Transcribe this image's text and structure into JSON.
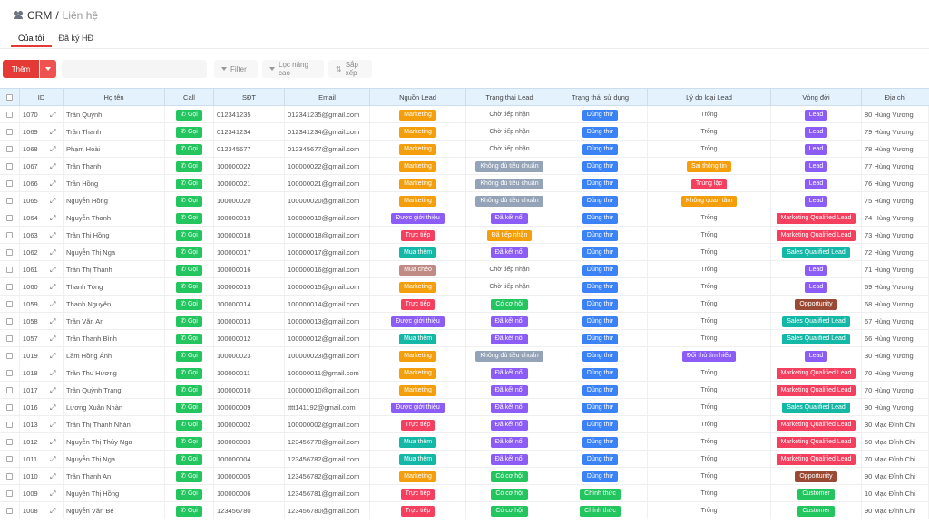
{
  "header": {
    "icon": "users-icon",
    "title": "CRM",
    "separator": "/",
    "subtitle": "Liên hệ"
  },
  "tabs": [
    {
      "label": "Của tôi",
      "active": true
    },
    {
      "label": "Đã ký HĐ",
      "active": false
    }
  ],
  "toolbar": {
    "add_label": "Thêm",
    "search_placeholder": "",
    "filter_label": "Filter",
    "advanced_filter_label": "Lọc nâng cao",
    "sort_label": "Sắp xếp",
    "accent": "#e53935"
  },
  "columns": [
    "ID",
    "Họ tên",
    "Call",
    "SĐT",
    "Email",
    "Nguồn Lead",
    "Trạng thái Lead",
    "Trạng thái sử dụng",
    "Lý do loại Lead",
    "Vòng đời",
    "Địa chỉ"
  ],
  "call_label": "Gọi",
  "colors": {
    "Marketing": "#f59e0b",
    "Được giới thiệu": "#8b5cf6",
    "Trực tiếp": "#f43f5e",
    "Mua thêm": "#14b8a6",
    "Mua chéo": "#c08b84",
    "Chờ tiếp nhận": "",
    "Không đủ tiêu chuẩn": "#94a3b8",
    "Đã kết nối": "#8b5cf6",
    "Đã tiếp nhận": "#f59e0b",
    "Có cơ hội": "#22c55e",
    "Dùng thử": "#3b82f6",
    "Chính thức": "#22c55e",
    "Trống": "",
    "Sai thông tin": "#f59e0b",
    "Trùng lặp": "#f43f5e",
    "Không quan tâm": "#f59e0b",
    "Đối thủ tìm hiểu": "#8b5cf6",
    "Lead": "#8b5cf6",
    "Marketing Qualified Lead": "#f43f5e",
    "Sales Qualified Lead": "#14b8a6",
    "Opportunity": "#9a4a34",
    "Customer": "#22c55e"
  },
  "rows": [
    {
      "id": "1070",
      "name": "Trần Quỳnh",
      "phone": "012341235",
      "email": "012341235@gmail.com",
      "source": "Marketing",
      "lead_status": "Chờ tiếp nhận",
      "usage": "Dùng thử",
      "reason": "Trống",
      "lifecycle": "Lead",
      "address": "80 Hùng Vương"
    },
    {
      "id": "1069",
      "name": "Trần Thanh",
      "phone": "012341234",
      "email": "012341234@gmail.com",
      "source": "Marketing",
      "lead_status": "Chờ tiếp nhận",
      "usage": "Dùng thử",
      "reason": "Trống",
      "lifecycle": "Lead",
      "address": "79 Hùng Vương"
    },
    {
      "id": "1068",
      "name": "Phạm Hoài",
      "phone": "012345677",
      "email": "012345677@gmail.com",
      "source": "Marketing",
      "lead_status": "Chờ tiếp nhận",
      "usage": "Dùng thử",
      "reason": "Trống",
      "lifecycle": "Lead",
      "address": "78 Hùng Vương"
    },
    {
      "id": "1067",
      "name": "Trần Thanh",
      "phone": "100000022",
      "email": "100000022@gmail.com",
      "source": "Marketing",
      "lead_status": "Không đủ tiêu chuẩn",
      "usage": "Dùng thử",
      "reason": "Sai thông tin",
      "lifecycle": "Lead",
      "address": "77 Hùng Vương"
    },
    {
      "id": "1066",
      "name": "Trần Hồng",
      "phone": "100000021",
      "email": "100000021@gmail.com",
      "source": "Marketing",
      "lead_status": "Không đủ tiêu chuẩn",
      "usage": "Dùng thử",
      "reason": "Trùng lặp",
      "lifecycle": "Lead",
      "address": "76 Hùng Vương"
    },
    {
      "id": "1065",
      "name": "Nguyễn Hồng",
      "phone": "100000020",
      "email": "100000020@gmail.com",
      "source": "Marketing",
      "lead_status": "Không đủ tiêu chuẩn",
      "usage": "Dùng thử",
      "reason": "Không quan tâm",
      "lifecycle": "Lead",
      "address": "75 Hùng Vương"
    },
    {
      "id": "1064",
      "name": "Nguyễn Thanh",
      "phone": "100000019",
      "email": "100000019@gmail.com",
      "source": "Được giới thiệu",
      "lead_status": "Đã kết nối",
      "usage": "Dùng thử",
      "reason": "Trống",
      "lifecycle": "Marketing Qualified Lead",
      "address": "74 Hùng Vương"
    },
    {
      "id": "1063",
      "name": "Trần Thị Hồng",
      "phone": "100000018",
      "email": "100000018@gmail.com",
      "source": "Trực tiếp",
      "lead_status": "Đã tiếp nhận",
      "usage": "Dùng thử",
      "reason": "Trống",
      "lifecycle": "Marketing Qualified Lead",
      "address": "73 Hùng Vương"
    },
    {
      "id": "1062",
      "name": "Nguyễn Thị Nga",
      "phone": "100000017",
      "email": "100000017@gmail.com",
      "source": "Mua thêm",
      "lead_status": "Đã kết nối",
      "usage": "Dùng thử",
      "reason": "Trống",
      "lifecycle": "Sales Qualified Lead",
      "address": "72 Hùng Vương"
    },
    {
      "id": "1061",
      "name": "Trần Thị Thanh",
      "phone": "100000016",
      "email": "100000016@gmail.com",
      "source": "Mua chéo",
      "lead_status": "Chờ tiếp nhận",
      "usage": "Dùng thử",
      "reason": "Trống",
      "lifecycle": "Lead",
      "address": "71 Hùng Vương"
    },
    {
      "id": "1060",
      "name": "Thanh Tòng",
      "phone": "100000015",
      "email": "100000015@gmail.com",
      "source": "Marketing",
      "lead_status": "Chờ tiếp nhận",
      "usage": "Dùng thử",
      "reason": "Trống",
      "lifecycle": "Lead",
      "address": "69 Hùng Vương"
    },
    {
      "id": "1059",
      "name": "Thanh Nguyên",
      "phone": "100000014",
      "email": "100000014@gmail.com",
      "source": "Trực tiếp",
      "lead_status": "Có cơ hội",
      "usage": "Dùng thử",
      "reason": "Trống",
      "lifecycle": "Opportunity",
      "address": "68 Hùng Vương"
    },
    {
      "id": "1058",
      "name": "Trần Văn An",
      "phone": "100000013",
      "email": "100000013@gmail.com",
      "source": "Được giới thiệu",
      "lead_status": "Đã kết nối",
      "usage": "Dùng thử",
      "reason": "Trống",
      "lifecycle": "Sales Qualified Lead",
      "address": "67 Hùng Vương"
    },
    {
      "id": "1057",
      "name": "Trần Thanh Bình",
      "phone": "100000012",
      "email": "100000012@gmail.com",
      "source": "Mua thêm",
      "lead_status": "Đã kết nối",
      "usage": "Dùng thử",
      "reason": "Trống",
      "lifecycle": "Sales Qualified Lead",
      "address": "66 Hùng Vương"
    },
    {
      "id": "1019",
      "name": "Lâm Hồng Ánh",
      "phone": "100000023",
      "email": "100000023@gmail.com",
      "source": "Marketing",
      "lead_status": "Không đủ tiêu chuẩn",
      "usage": "Dùng thử",
      "reason": "Đối thủ tìm hiểu",
      "lifecycle": "Lead",
      "address": "30 Hùng Vương"
    },
    {
      "id": "1018",
      "name": "Trần Thu Hương",
      "phone": "100000011",
      "email": "100000011@gmail.com",
      "source": "Marketing",
      "lead_status": "Đã kết nối",
      "usage": "Dùng thử",
      "reason": "Trống",
      "lifecycle": "Marketing Qualified Lead",
      "address": "70 Hùng Vương"
    },
    {
      "id": "1017",
      "name": "Trần Quỳnh Trang",
      "phone": "100000010",
      "email": "100000010@gmail.com",
      "source": "Marketing",
      "lead_status": "Đã kết nối",
      "usage": "Dùng thử",
      "reason": "Trống",
      "lifecycle": "Marketing Qualified Lead",
      "address": "70 Hùng Vương"
    },
    {
      "id": "1016",
      "name": "Lương Xuân Nhàn",
      "phone": "100000009",
      "email": "tttt141192@gmail.com",
      "source": "Được giới thiệu",
      "lead_status": "Đã kết nối",
      "usage": "Dùng thử",
      "reason": "Trống",
      "lifecycle": "Sales Qualified Lead",
      "address": "90 Hùng Vương"
    },
    {
      "id": "1013",
      "name": "Trần Thị Thanh Nhàn",
      "phone": "100000002",
      "email": "100000002@gmail.com",
      "source": "Trực tiếp",
      "lead_status": "Đã kết nối",
      "usage": "Dùng thử",
      "reason": "Trống",
      "lifecycle": "Marketing Qualified Lead",
      "address": "30 Mạc Đĩnh Chi"
    },
    {
      "id": "1012",
      "name": "Nguyễn Thị Thúy Nga",
      "phone": "100000003",
      "email": "123456778@gmail.com",
      "source": "Mua thêm",
      "lead_status": "Đã kết nối",
      "usage": "Dùng thử",
      "reason": "Trống",
      "lifecycle": "Marketing Qualified Lead",
      "address": "50 Mạc Đĩnh Chi"
    },
    {
      "id": "1011",
      "name": "Nguyễn Thị Nga",
      "phone": "100000004",
      "email": "123456782@gmail.com",
      "source": "Mua thêm",
      "lead_status": "Đã kết nối",
      "usage": "Dùng thử",
      "reason": "Trống",
      "lifecycle": "Marketing Qualified Lead",
      "address": "70 Mạc Đĩnh Chi"
    },
    {
      "id": "1010",
      "name": "Trần Thanh An",
      "phone": "100000005",
      "email": "123456782@gmail.com",
      "source": "Marketing",
      "lead_status": "Có cơ hội",
      "usage": "Dùng thử",
      "reason": "Trống",
      "lifecycle": "Opportunity",
      "address": "90 Mạc Đĩnh Chi"
    },
    {
      "id": "1009",
      "name": "Nguyễn Thị Hồng",
      "phone": "100000006",
      "email": "123456781@gmail.com",
      "source": "Trực tiếp",
      "lead_status": "Có cơ hội",
      "usage": "Chính thức",
      "reason": "Trống",
      "lifecycle": "Customer",
      "address": "10 Mạc Đĩnh Chi"
    },
    {
      "id": "1008",
      "name": "Nguyễn Văn Bé",
      "phone": "123456780",
      "email": "123456780@gmail.com",
      "source": "Trực tiếp",
      "lead_status": "Có cơ hội",
      "usage": "Chính thức",
      "reason": "Trống",
      "lifecycle": "Customer",
      "address": "90 Mạc Đĩnh Chi"
    }
  ]
}
